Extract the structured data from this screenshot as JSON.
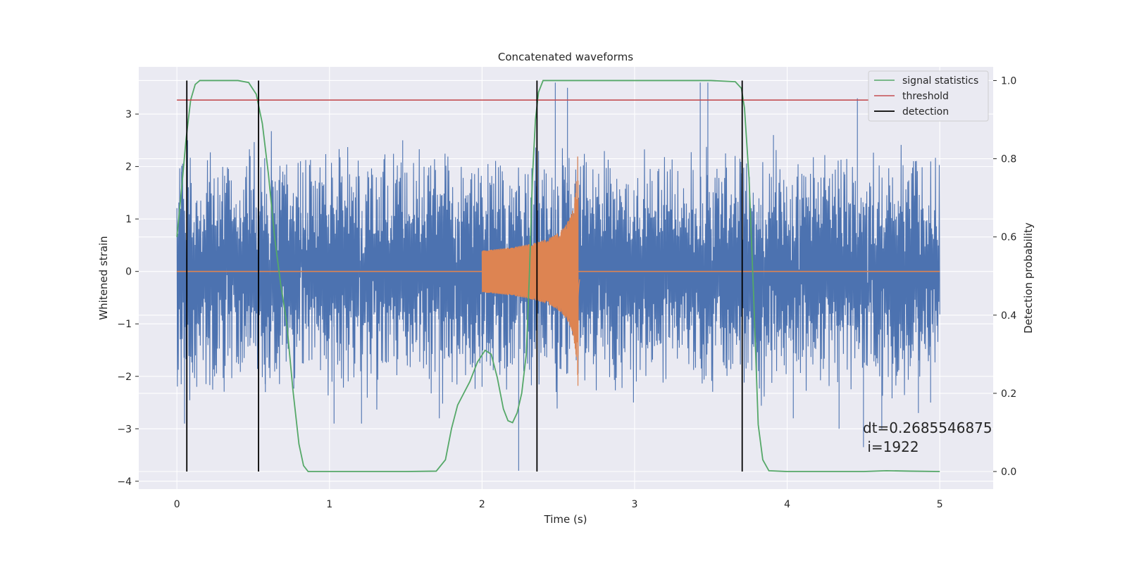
{
  "chart_data": {
    "type": "line",
    "title": "Concatenated waveforms",
    "xlabel": "Time (s)",
    "ylabel": "Whitened strain",
    "y2label": "Detection probability",
    "xlim": [
      -0.25,
      5.35
    ],
    "ylim": [
      -4.15,
      3.9
    ],
    "y2lim": [
      -0.045,
      1.035
    ],
    "xticks": [
      "0",
      "1",
      "2",
      "3",
      "4",
      "5"
    ],
    "yticks": [
      "−4",
      "−3",
      "−2",
      "−1",
      "0",
      "1",
      "2",
      "3"
    ],
    "y2ticks": [
      "0.0",
      "0.2",
      "0.4",
      "0.6",
      "0.8",
      "1.0"
    ],
    "grid": true,
    "legend_position": "top-right",
    "colors": {
      "strain": "#4c72b0",
      "injection": "#dd8452",
      "signal_statistics": "#55a868",
      "threshold": "#c44e52",
      "detection": "#000000",
      "background": "#eaeaf2"
    },
    "series": [
      {
        "name": "signal statistics",
        "axis": "right",
        "points": [
          [
            0,
            0.6
          ],
          [
            0.03,
            0.72
          ],
          [
            0.06,
            0.85
          ],
          [
            0.09,
            0.95
          ],
          [
            0.12,
            0.99
          ],
          [
            0.15,
            1.0
          ],
          [
            0.25,
            1.0
          ],
          [
            0.4,
            1.0
          ],
          [
            0.47,
            0.995
          ],
          [
            0.52,
            0.965
          ],
          [
            0.56,
            0.89
          ],
          [
            0.6,
            0.76
          ],
          [
            0.64,
            0.6
          ],
          [
            0.68,
            0.48
          ],
          [
            0.72,
            0.38
          ],
          [
            0.76,
            0.21
          ],
          [
            0.8,
            0.07
          ],
          [
            0.83,
            0.015
          ],
          [
            0.86,
            0.0
          ],
          [
            1.0,
            0.0
          ],
          [
            1.5,
            0.0
          ],
          [
            1.7,
            0.001
          ],
          [
            1.76,
            0.03
          ],
          [
            1.8,
            0.11
          ],
          [
            1.84,
            0.17
          ],
          [
            1.88,
            0.2
          ],
          [
            1.92,
            0.23
          ],
          [
            1.97,
            0.28
          ],
          [
            2.02,
            0.31
          ],
          [
            2.06,
            0.3
          ],
          [
            2.1,
            0.24
          ],
          [
            2.14,
            0.16
          ],
          [
            2.17,
            0.13
          ],
          [
            2.2,
            0.125
          ],
          [
            2.23,
            0.15
          ],
          [
            2.26,
            0.2
          ],
          [
            2.29,
            0.3
          ],
          [
            2.31,
            0.5
          ],
          [
            2.33,
            0.75
          ],
          [
            2.35,
            0.9
          ],
          [
            2.37,
            0.97
          ],
          [
            2.4,
            1.0
          ],
          [
            2.6,
            1.0
          ],
          [
            3.0,
            1.0
          ],
          [
            3.5,
            1.0
          ],
          [
            3.66,
            0.997
          ],
          [
            3.7,
            0.98
          ],
          [
            3.72,
            0.93
          ],
          [
            3.75,
            0.75
          ],
          [
            3.78,
            0.45
          ],
          [
            3.81,
            0.12
          ],
          [
            3.84,
            0.03
          ],
          [
            3.88,
            0.002
          ],
          [
            4.0,
            0.0
          ],
          [
            4.5,
            0.0
          ],
          [
            4.65,
            0.002
          ],
          [
            4.8,
            0.001
          ],
          [
            5.0,
            0.0
          ]
        ]
      },
      {
        "name": "threshold",
        "axis": "right",
        "points": [
          [
            0,
            0.95
          ],
          [
            5.05,
            0.95
          ]
        ]
      },
      {
        "name": "detection",
        "axis": "right",
        "x": [
          0.065,
          0.535,
          2.36,
          3.705
        ],
        "ymin": 0.0,
        "ymax": 1.0
      }
    ],
    "strain_series": {
      "axis": "left",
      "x_range": [
        0,
        5
      ],
      "samples": 1600,
      "envelope_percent": [
        -1.8,
        1.8
      ],
      "peak_max": 3.6,
      "peak_min": -3.8
    },
    "injection_series": {
      "axis": "left",
      "x_range": [
        2.0,
        2.64
      ],
      "amplitude_start": 0.4,
      "amplitude_peak": 2.2,
      "peak_time": 2.63
    },
    "annotation": {
      "line1": "dt=0.2685546875",
      "line2": " i=1922",
      "x": 4.5,
      "y": 0.1
    }
  }
}
